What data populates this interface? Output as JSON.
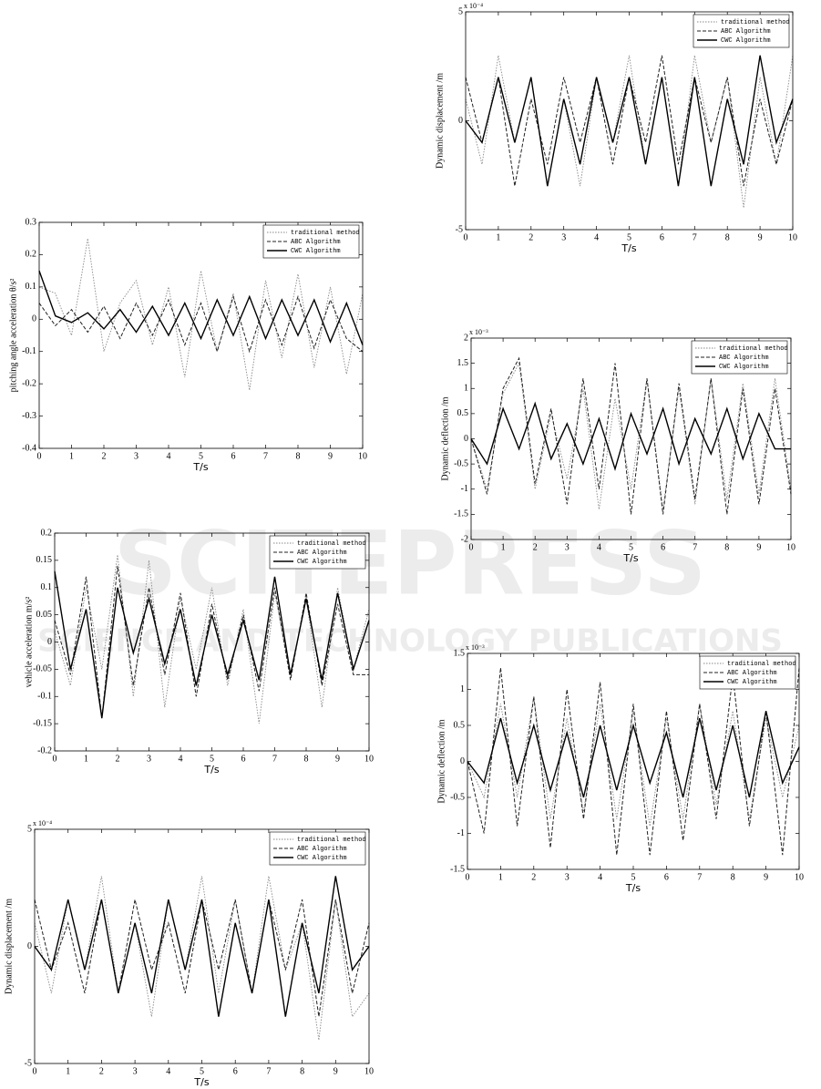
{
  "watermark": {
    "title": "SCITEPRESS",
    "subtitle": "SCIENCE AND TECHNOLOGY PUBLICATIONS"
  },
  "chart_data": [
    {
      "type": "line",
      "ylabel": "pitching angle acceleration θ/s²",
      "xlabel": "T/s",
      "x": [
        0,
        0.5,
        1,
        1.5,
        2,
        2.5,
        3,
        3.5,
        4,
        4.5,
        5,
        5.5,
        6,
        6.5,
        7,
        7.5,
        8,
        8.5,
        9,
        9.5,
        10
      ],
      "xlim": [
        0,
        10
      ],
      "xticks": [
        0,
        1,
        2,
        3,
        4,
        5,
        6,
        7,
        8,
        9,
        10
      ],
      "ylim": [
        -0.4,
        0.3
      ],
      "yticks": [
        -0.4,
        -0.3,
        -0.2,
        -0.1,
        0,
        0.1,
        0.2,
        0.3
      ],
      "series": [
        {
          "name": "traditional method",
          "color": "#888888",
          "dash": "dotted",
          "values": [
            0.1,
            0.08,
            -0.05,
            0.25,
            -0.1,
            0.05,
            0.12,
            -0.08,
            0.1,
            -0.18,
            0.15,
            -0.1,
            0.08,
            -0.22,
            0.12,
            -0.12,
            0.14,
            -0.15,
            0.1,
            -0.17,
            0.08
          ]
        },
        {
          "name": "ABC Algorithm",
          "color": "#222222",
          "dash": "dashed",
          "values": [
            0.05,
            -0.02,
            0.03,
            -0.04,
            0.04,
            -0.06,
            0.05,
            -0.05,
            0.06,
            -0.08,
            0.05,
            -0.1,
            0.07,
            -0.1,
            0.06,
            -0.08,
            0.07,
            -0.09,
            0.06,
            -0.06,
            -0.1
          ]
        },
        {
          "name": "CWC Algorithm",
          "color": "#000000",
          "dash": "solid",
          "values": [
            0.15,
            0.01,
            -0.01,
            0.02,
            -0.03,
            0.03,
            -0.04,
            0.04,
            -0.05,
            0.05,
            -0.06,
            0.06,
            -0.05,
            0.07,
            -0.06,
            0.06,
            -0.05,
            0.06,
            -0.07,
            0.05,
            -0.08
          ]
        }
      ]
    },
    {
      "type": "line",
      "ylabel": "vehicle acceleration m/s²",
      "xlabel": "T/s",
      "x": [
        0,
        0.5,
        1,
        1.5,
        2,
        2.5,
        3,
        3.5,
        4,
        4.5,
        5,
        5.5,
        6,
        6.5,
        7,
        7.5,
        8,
        8.5,
        9,
        9.5,
        10
      ],
      "xlim": [
        0,
        10
      ],
      "xticks": [
        0,
        1,
        2,
        3,
        4,
        5,
        6,
        7,
        8,
        9,
        10
      ],
      "ylim": [
        -0.2,
        0.2
      ],
      "yticks": [
        -0.2,
        -0.15,
        -0.1,
        -0.05,
        0,
        0.05,
        0.1,
        0.15,
        0.2
      ],
      "series": [
        {
          "name": "traditional method",
          "color": "#888888",
          "dash": "dotted",
          "values": [
            0.02,
            -0.08,
            0.1,
            -0.05,
            0.16,
            -0.1,
            0.15,
            -0.12,
            0.08,
            -0.05,
            0.1,
            -0.08,
            0.06,
            -0.15,
            0.09,
            -0.06,
            0.08,
            -0.12,
            0.1,
            -0.05,
            0.06
          ]
        },
        {
          "name": "ABC Algorithm",
          "color": "#222222",
          "dash": "dashed",
          "values": [
            0.04,
            -0.06,
            0.12,
            -0.14,
            0.14,
            -0.08,
            0.1,
            -0.06,
            0.09,
            -0.1,
            0.07,
            -0.07,
            0.05,
            -0.09,
            0.1,
            -0.07,
            0.09,
            -0.08,
            0.07,
            -0.06,
            -0.06
          ]
        },
        {
          "name": "CWC Algorithm",
          "color": "#000000",
          "dash": "solid",
          "values": [
            0.13,
            -0.05,
            0.06,
            -0.14,
            0.1,
            -0.02,
            0.08,
            -0.04,
            0.06,
            -0.08,
            0.05,
            -0.06,
            0.04,
            -0.07,
            0.12,
            -0.06,
            0.08,
            -0.07,
            0.09,
            -0.05,
            0.04
          ]
        }
      ]
    },
    {
      "type": "line",
      "ylabel": "Dynamic displacement /m",
      "xlabel": "T/s",
      "y_multiplier": "x 10⁻⁴",
      "x": [
        0,
        0.5,
        1,
        1.5,
        2,
        2.5,
        3,
        3.5,
        4,
        4.5,
        5,
        5.5,
        6,
        6.5,
        7,
        7.5,
        8,
        8.5,
        9,
        9.5,
        10
      ],
      "xlim": [
        0,
        10
      ],
      "xticks": [
        0,
        1,
        2,
        3,
        4,
        5,
        6,
        7,
        8,
        9,
        10
      ],
      "ylim": [
        -5,
        5
      ],
      "yticks": [
        -5,
        0,
        5
      ],
      "series": [
        {
          "name": "traditional method",
          "color": "#888888",
          "dash": "dotted",
          "values": [
            1,
            -2,
            2,
            -1,
            3,
            -2,
            1,
            -3,
            2,
            -1,
            3,
            -2,
            2,
            -2,
            3,
            -1,
            1,
            -4,
            2,
            -3,
            -2
          ]
        },
        {
          "name": "ABC Algorithm",
          "color": "#222222",
          "dash": "dashed",
          "values": [
            2,
            -1,
            1,
            -2,
            2,
            -2,
            2,
            -1,
            1,
            -2,
            2,
            -1,
            2,
            -2,
            2,
            -1,
            2,
            -3,
            2,
            -2,
            1
          ]
        },
        {
          "name": "CWC Algorithm",
          "color": "#000000",
          "dash": "solid",
          "values": [
            0,
            -1,
            2,
            -1,
            2,
            -2,
            1,
            -2,
            2,
            -1,
            2,
            -3,
            1,
            -2,
            2,
            -3,
            1,
            -2,
            3,
            -1,
            0
          ]
        }
      ]
    },
    {
      "type": "line",
      "ylabel": "Dynamic displacement /m",
      "xlabel": "T/s",
      "y_multiplier": "x 10⁻⁴",
      "x": [
        0,
        0.5,
        1,
        1.5,
        2,
        2.5,
        3,
        3.5,
        4,
        4.5,
        5,
        5.5,
        6,
        6.5,
        7,
        7.5,
        8,
        8.5,
        9,
        9.5,
        10
      ],
      "xlim": [
        0,
        10
      ],
      "xticks": [
        0,
        1,
        2,
        3,
        4,
        5,
        6,
        7,
        8,
        9,
        10
      ],
      "ylim": [
        -5,
        5
      ],
      "yticks": [
        -5,
        0,
        5
      ],
      "series": [
        {
          "name": "traditional method",
          "color": "#888888",
          "dash": "dotted",
          "values": [
            1,
            -2,
            3,
            -1,
            2,
            -3,
            1,
            -3,
            2,
            -1,
            3,
            -2,
            2,
            -3,
            3,
            -1,
            2,
            -4,
            2,
            -2,
            3
          ]
        },
        {
          "name": "ABC Algorithm",
          "color": "#222222",
          "dash": "dashed",
          "values": [
            2,
            -1,
            2,
            -3,
            1,
            -2,
            2,
            -1,
            2,
            -2,
            2,
            -1,
            3,
            -2,
            2,
            -1,
            2,
            -3,
            1,
            -2,
            1
          ]
        },
        {
          "name": "CWC Algorithm",
          "color": "#000000",
          "dash": "solid",
          "values": [
            0,
            -1,
            2,
            -1,
            2,
            -3,
            1,
            -2,
            2,
            -1,
            2,
            -2,
            2,
            -3,
            2,
            -3,
            1,
            -2,
            3,
            -1,
            1
          ]
        }
      ]
    },
    {
      "type": "line",
      "ylabel": "Dynamic deflection /m",
      "xlabel": "T/s",
      "y_multiplier": "x 10⁻³",
      "x": [
        0,
        0.5,
        1,
        1.5,
        2,
        2.5,
        3,
        3.5,
        4,
        4.5,
        5,
        5.5,
        6,
        6.5,
        7,
        7.5,
        8,
        8.5,
        9,
        9.5,
        10
      ],
      "xlim": [
        0,
        10
      ],
      "xticks": [
        0,
        1,
        2,
        3,
        4,
        5,
        6,
        7,
        8,
        9,
        10
      ],
      "ylim": [
        -2,
        2
      ],
      "yticks": [
        -2,
        -1.5,
        -1,
        -0.5,
        0,
        0.5,
        1,
        1.5,
        2
      ],
      "series": [
        {
          "name": "traditional method",
          "color": "#888888",
          "dash": "dotted",
          "values": [
            0,
            -1,
            0.9,
            1.5,
            -1,
            0.5,
            -0.8,
            1,
            -1.4,
            0.8,
            -1,
            1.2,
            -1.4,
            1,
            -1.3,
            1.2,
            -1.2,
            1.1,
            -1.1,
            1.2,
            -1
          ]
        },
        {
          "name": "ABC Algorithm",
          "color": "#222222",
          "dash": "dashed",
          "values": [
            0,
            -1.1,
            1,
            1.6,
            -0.9,
            0.6,
            -1.3,
            1.2,
            -1,
            1.5,
            -1.5,
            1.2,
            -1.5,
            1.1,
            -1.2,
            1.2,
            -1.5,
            1,
            -1.3,
            1,
            -1.1
          ]
        },
        {
          "name": "CWC Algorithm",
          "color": "#000000",
          "dash": "solid",
          "values": [
            0,
            -0.5,
            0.6,
            -0.2,
            0.7,
            -0.4,
            0.3,
            -0.5,
            0.4,
            -0.6,
            0.5,
            -0.3,
            0.6,
            -0.5,
            0.4,
            -0.3,
            0.6,
            -0.4,
            0.5,
            -0.2,
            -0.2
          ]
        }
      ]
    },
    {
      "type": "line",
      "ylabel": "Dynamic deflection /m",
      "xlabel": "T/s",
      "y_multiplier": "x 10⁻³",
      "x": [
        0,
        0.5,
        1,
        1.5,
        2,
        2.5,
        3,
        3.5,
        4,
        4.5,
        5,
        5.5,
        6,
        6.5,
        7,
        7.5,
        8,
        8.5,
        9,
        9.5,
        10
      ],
      "xlim": [
        0,
        10
      ],
      "xticks": [
        0,
        1,
        2,
        3,
        4,
        5,
        6,
        7,
        8,
        9,
        10
      ],
      "ylim": [
        -1.5,
        1.5
      ],
      "yticks": [
        -1.5,
        -1,
        -0.5,
        0,
        0.5,
        1,
        1.5
      ],
      "series": [
        {
          "name": "traditional method",
          "color": "#888888",
          "dash": "dotted",
          "values": [
            0,
            -0.5,
            0.8,
            -0.5,
            0.9,
            -0.8,
            0.6,
            -0.7,
            0.8,
            -0.8,
            0.7,
            -0.9,
            0.6,
            -0.8,
            0.8,
            -0.6,
            0.7,
            -0.8,
            0.6,
            -0.5,
            0.5
          ]
        },
        {
          "name": "ABC Algorithm",
          "color": "#222222",
          "dash": "dashed",
          "values": [
            0,
            -1,
            1.3,
            -0.9,
            0.9,
            -1.2,
            1,
            -0.8,
            1.1,
            -1.3,
            0.8,
            -1.3,
            0.7,
            -1.1,
            0.8,
            -0.8,
            1.2,
            -0.9,
            0.7,
            -1.3,
            1.3
          ]
        },
        {
          "name": "CWC Algorithm",
          "color": "#000000",
          "dash": "solid",
          "values": [
            0,
            -0.3,
            0.6,
            -0.3,
            0.5,
            -0.4,
            0.4,
            -0.5,
            0.5,
            -0.4,
            0.5,
            -0.3,
            0.4,
            -0.5,
            0.6,
            -0.4,
            0.5,
            -0.5,
            0.7,
            -0.3,
            0.2
          ]
        }
      ]
    }
  ]
}
